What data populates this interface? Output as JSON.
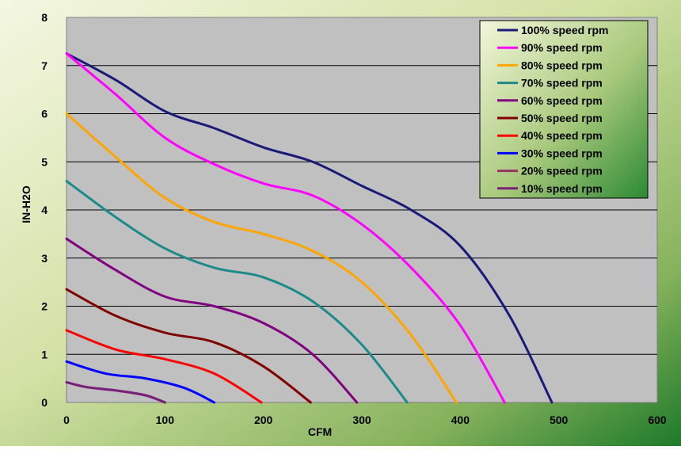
{
  "chart_data": {
    "type": "line",
    "title": "",
    "xlabel": "CFM",
    "ylabel": "IN-H2O",
    "xlim": [
      0,
      600
    ],
    "ylim": [
      0,
      8
    ],
    "x_ticks": [
      "0",
      "100",
      "200",
      "300",
      "400",
      "500",
      "600"
    ],
    "y_ticks": [
      "0",
      "1",
      "2",
      "3",
      "4",
      "5",
      "6",
      "7",
      "8"
    ],
    "grid": "horizontal",
    "legend_position": "top-right",
    "series": [
      {
        "name": "100% speed rpm",
        "color": "#1a1a7a",
        "x": [
          0,
          50,
          100,
          150,
          200,
          250,
          300,
          350,
          400,
          450,
          493
        ],
        "y": [
          7.25,
          6.7,
          6.05,
          5.7,
          5.3,
          5.0,
          4.5,
          4.0,
          3.25,
          1.8,
          0
        ]
      },
      {
        "name": "90% speed rpm",
        "color": "#ff00ff",
        "x": [
          0,
          50,
          100,
          150,
          200,
          250,
          300,
          350,
          400,
          445
        ],
        "y": [
          7.25,
          6.4,
          5.5,
          4.95,
          4.55,
          4.3,
          3.7,
          2.8,
          1.6,
          0
        ]
      },
      {
        "name": "80% speed rpm",
        "color": "#ffa500",
        "x": [
          0,
          50,
          100,
          150,
          200,
          250,
          300,
          350,
          396
        ],
        "y": [
          6.0,
          5.1,
          4.25,
          3.75,
          3.5,
          3.15,
          2.5,
          1.4,
          0
        ]
      },
      {
        "name": "70% speed rpm",
        "color": "#1a8a8a",
        "x": [
          0,
          50,
          100,
          150,
          200,
          250,
          300,
          346
        ],
        "y": [
          4.6,
          3.85,
          3.2,
          2.8,
          2.6,
          2.1,
          1.2,
          0
        ]
      },
      {
        "name": "60% speed rpm",
        "color": "#800080",
        "x": [
          0,
          50,
          100,
          150,
          200,
          250,
          295
        ],
        "y": [
          3.4,
          2.75,
          2.2,
          2.0,
          1.65,
          1.0,
          0
        ]
      },
      {
        "name": "50% speed rpm",
        "color": "#800000",
        "x": [
          0,
          50,
          100,
          150,
          200,
          248
        ],
        "y": [
          2.35,
          1.8,
          1.45,
          1.25,
          0.75,
          0
        ]
      },
      {
        "name": "40% speed rpm",
        "color": "#ff0000",
        "x": [
          0,
          50,
          100,
          150,
          198
        ],
        "y": [
          1.5,
          1.1,
          0.9,
          0.6,
          0
        ]
      },
      {
        "name": "30% speed rpm",
        "color": "#0000ff",
        "x": [
          0,
          40,
          80,
          120,
          150
        ],
        "y": [
          0.85,
          0.6,
          0.5,
          0.3,
          0
        ]
      },
      {
        "name": "20% speed rpm",
        "color": "#993366",
        "x": [
          0,
          20,
          50,
          80,
          100
        ],
        "y": [
          0.42,
          0.32,
          0.25,
          0.15,
          0
        ]
      },
      {
        "name": "10% speed rpm",
        "color": "#7a1f7a",
        "x": [
          0,
          20,
          50,
          80,
          100
        ],
        "y": [
          0.42,
          0.32,
          0.25,
          0.15,
          0
        ]
      }
    ]
  }
}
